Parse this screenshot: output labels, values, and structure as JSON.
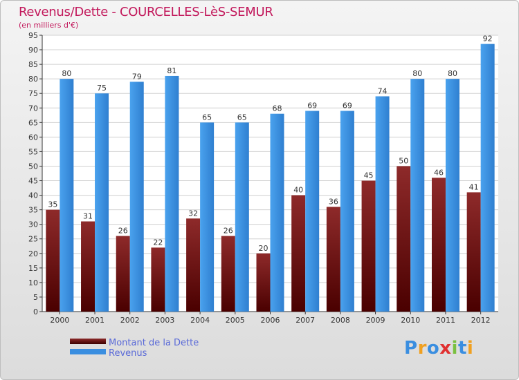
{
  "chart_data": {
    "type": "bar",
    "title": "Revenus/Dette - COURCELLES-LèS-SEMUR",
    "subtitle": "(en milliers d'€)",
    "categories": [
      "2000",
      "2001",
      "2002",
      "2003",
      "2004",
      "2005",
      "2006",
      "2007",
      "2008",
      "2009",
      "2010",
      "2011",
      "2012"
    ],
    "series": [
      {
        "name": "Montant de la Dette",
        "color": "#7a1010",
        "values": [
          35,
          31,
          26,
          22,
          32,
          26,
          20,
          40,
          36,
          45,
          50,
          46,
          41
        ]
      },
      {
        "name": "Revenus",
        "color": "#3a8ee0",
        "values": [
          80,
          75,
          79,
          81,
          65,
          65,
          68,
          69,
          69,
          74,
          80,
          80,
          92
        ]
      }
    ],
    "ylim": [
      0,
      95
    ],
    "ytick_step": 5,
    "grid": true,
    "legend_position": "bottom-left"
  },
  "logo": {
    "text": "Proxiti"
  }
}
